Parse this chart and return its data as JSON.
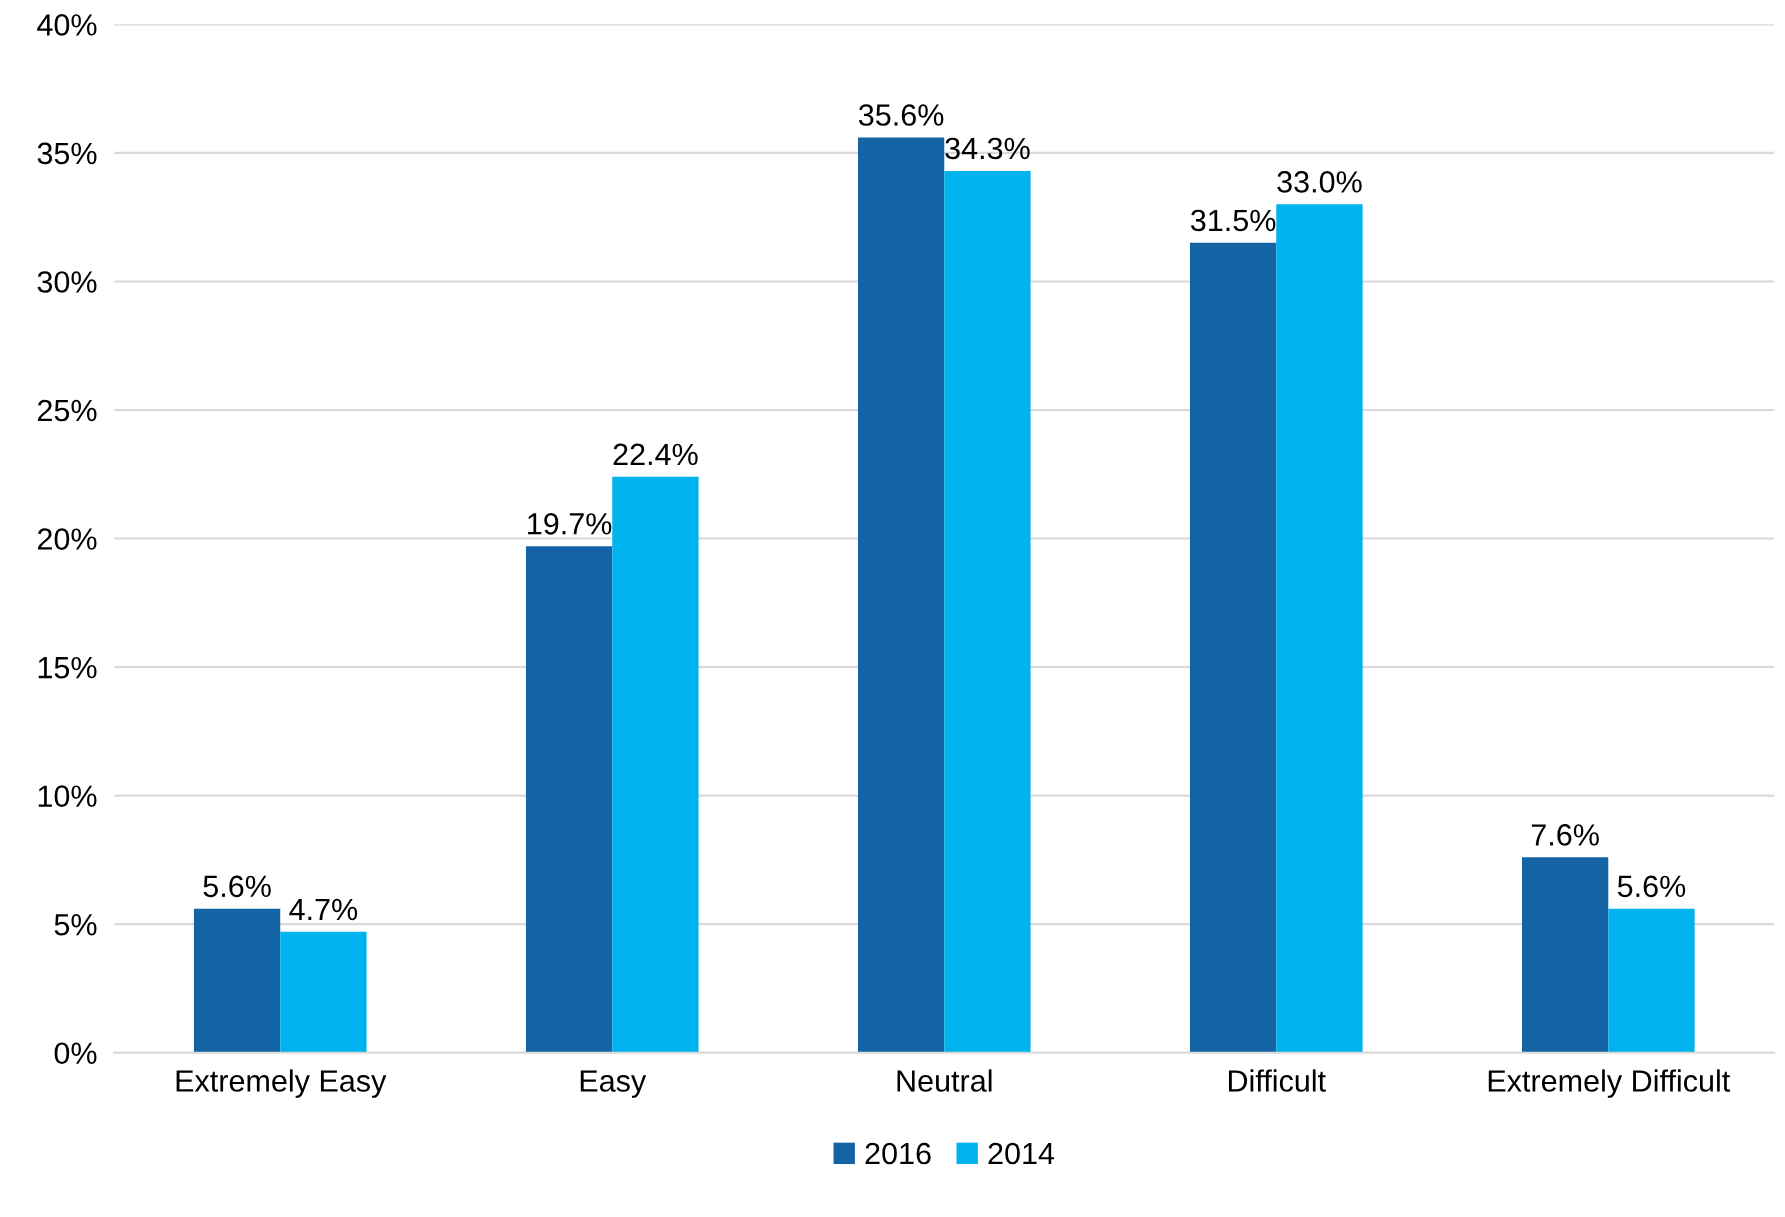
{
  "chart_data": {
    "type": "bar",
    "categories": [
      "Extremely Easy",
      "Easy",
      "Neutral",
      "Difficult",
      "Extremely Difficult"
    ],
    "series": [
      {
        "name": "2016",
        "color": "#1464a5",
        "values": [
          5.6,
          19.7,
          35.6,
          31.5,
          7.6
        ],
        "value_labels": [
          "5.6%",
          "19.7%",
          "35.6%",
          "31.5%",
          "7.6%"
        ]
      },
      {
        "name": "2014",
        "color": "#00b2ee",
        "values": [
          4.7,
          22.4,
          34.3,
          33.0,
          5.6
        ],
        "value_labels": [
          "4.7%",
          "22.4%",
          "34.3%",
          "33.0%",
          "5.6%"
        ]
      }
    ],
    "ylim": [
      0,
      40
    ],
    "yticks": [
      {
        "value": 0,
        "label": "0%"
      },
      {
        "value": 5,
        "label": "5%"
      },
      {
        "value": 10,
        "label": "10%"
      },
      {
        "value": 15,
        "label": "15%"
      },
      {
        "value": 20,
        "label": "20%"
      },
      {
        "value": 25,
        "label": "25%"
      },
      {
        "value": 30,
        "label": "30%"
      },
      {
        "value": 35,
        "label": "35%"
      },
      {
        "value": 40,
        "label": "40%"
      }
    ],
    "grid": "y",
    "legend": "bottom"
  }
}
